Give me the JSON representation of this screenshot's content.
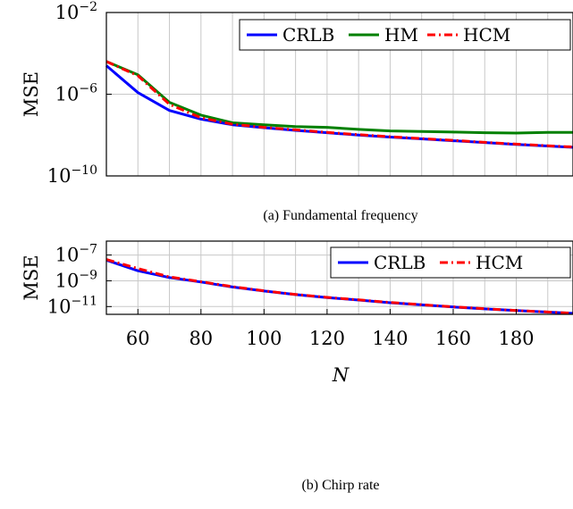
{
  "chart_data": [
    {
      "type": "line",
      "caption": "(a) Fundamental frequency",
      "ylabel": "MSE",
      "xlim": [
        50,
        198
      ],
      "ylim": [
        1e-10,
        0.01
      ],
      "yscale": "log",
      "yticks": [
        {
          "value": 1e-10,
          "base": "10",
          "exp": "−10"
        },
        {
          "value": 1e-06,
          "base": "10",
          "exp": "−6"
        },
        {
          "value": 0.01,
          "base": "10",
          "exp": "−2"
        }
      ],
      "xgrid": [
        60,
        70,
        80,
        90,
        100,
        110,
        120,
        130,
        140,
        150,
        160,
        170,
        180,
        190
      ],
      "grid": true,
      "legend": "top-right, horizontal",
      "x": [
        50,
        60,
        70,
        80,
        90,
        100,
        110,
        120,
        130,
        140,
        150,
        160,
        170,
        180,
        190,
        198
      ],
      "series": [
        {
          "name": "CRLB",
          "color": "#0000ff",
          "dash": "solid",
          "values": [
            2.5e-05,
            1.2e-06,
            1.6e-07,
            6e-08,
            3.2e-08,
            2.3e-08,
            1.7e-08,
            1.3e-08,
            1e-08,
            8e-09,
            6.5e-09,
            5.3e-09,
            4.3e-09,
            3.5e-09,
            2.9e-09,
            2.5e-09
          ]
        },
        {
          "name": "HM",
          "color": "#008000",
          "dash": "solid",
          "values": [
            4e-05,
            9e-06,
            4e-07,
            9.5e-08,
            4e-08,
            3.2e-08,
            2.6e-08,
            2.4e-08,
            1.9e-08,
            1.6e-08,
            1.5e-08,
            1.4e-08,
            1.3e-08,
            1.25e-08,
            1.35e-08,
            1.35e-08
          ]
        },
        {
          "name": "HCM",
          "color": "#ff0000",
          "dash": "dashdot",
          "values": [
            4e-05,
            8e-06,
            3.2e-07,
            7e-08,
            3.4e-08,
            2.4e-08,
            1.8e-08,
            1.35e-08,
            1.05e-08,
            8.3e-09,
            6.7e-09,
            5.5e-09,
            4.4e-09,
            3.6e-09,
            3e-09,
            2.6e-09
          ]
        }
      ]
    },
    {
      "type": "line",
      "caption": "(b) Chirp rate",
      "ylabel": "MSE",
      "xlabel": "N",
      "xlim": [
        50,
        198
      ],
      "ylim": [
        2.5e-12,
        1.2e-06
      ],
      "yscale": "log",
      "yticks": [
        {
          "value": 1e-11,
          "base": "10",
          "exp": "−11"
        },
        {
          "value": 1e-09,
          "base": "10",
          "exp": "−9"
        },
        {
          "value": 1e-07,
          "base": "10",
          "exp": "−7"
        }
      ],
      "xticks": [
        60,
        80,
        100,
        120,
        140,
        160,
        180
      ],
      "xgrid": [
        60,
        70,
        80,
        90,
        100,
        110,
        120,
        130,
        140,
        150,
        160,
        170,
        180,
        190
      ],
      "grid": true,
      "legend": "top-right, horizontal",
      "x": [
        50,
        60,
        70,
        80,
        90,
        100,
        110,
        120,
        130,
        140,
        150,
        160,
        170,
        180,
        190,
        198
      ],
      "series": [
        {
          "name": "CRLB",
          "color": "#0000ff",
          "dash": "solid",
          "values": [
            4e-08,
            6e-09,
            1.8e-09,
            8e-10,
            3.3e-10,
            1.6e-10,
            8.5e-11,
            5e-11,
            3.2e-11,
            2e-11,
            1.35e-11,
            9.2e-12,
            6.6e-12,
            4.9e-12,
            3.7e-12,
            3e-12
          ]
        },
        {
          "name": "HCM",
          "color": "#ff0000",
          "dash": "dashdot",
          "values": [
            4.5e-08,
            9e-09,
            2e-09,
            8.5e-10,
            3.5e-10,
            1.65e-10,
            8.8e-11,
            5.2e-11,
            3.3e-11,
            2.1e-11,
            1.4e-11,
            9.5e-12,
            6.8e-12,
            5e-12,
            3.8e-12,
            3.1e-12
          ]
        }
      ]
    }
  ]
}
